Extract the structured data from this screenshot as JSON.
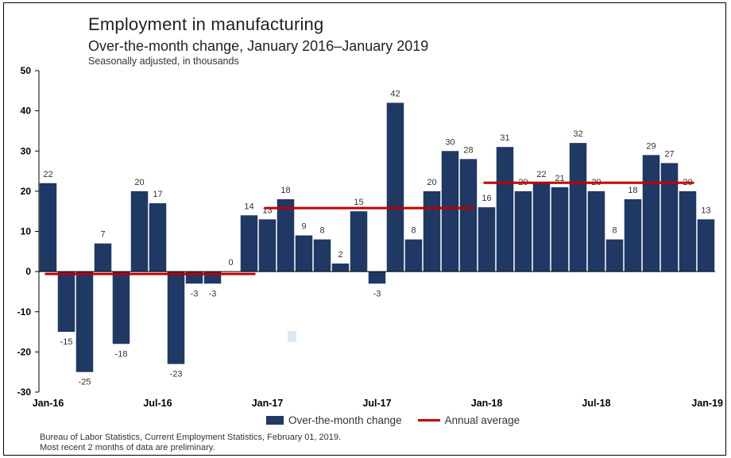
{
  "title": "Employment in manufacturing",
  "subtitle": "Over-the-month change, January 2016–January 2019",
  "note": "Seasonally adjusted, in thousands",
  "legend": {
    "bar_label": "Over-the-month change",
    "line_label": "Annual average"
  },
  "source": {
    "line1": "Bureau of Labor Statistics, Current Employment Statistics, February 01, 2019.",
    "line2": "Most recent 2 months of data are preliminary."
  },
  "colors": {
    "bar": "#1f3864",
    "avg_line": "#c00000"
  },
  "chart_data": {
    "type": "bar",
    "title": "Employment in manufacturing",
    "subtitle": "Over-the-month change, January 2016–January 2019",
    "ylabel": "",
    "xlabel": "",
    "ylim": [
      -30,
      50
    ],
    "yticks": [
      -30,
      -20,
      -10,
      0,
      10,
      20,
      30,
      40,
      50
    ],
    "grid": false,
    "legend_position": "bottom",
    "x_tick_labels": [
      {
        "label": "Jan-16",
        "month": "Jan 2016"
      },
      {
        "label": "Jul-16",
        "month": "Jul 2016"
      },
      {
        "label": "Jan-17",
        "month": "Jan 2017"
      },
      {
        "label": "Jul-17",
        "month": "Jul 2017"
      },
      {
        "label": "Jan-18",
        "month": "Jan 2018"
      },
      {
        "label": "Jul-18",
        "month": "Jul 2018"
      },
      {
        "label": "Jan-19",
        "month": "Jan 2019"
      }
    ],
    "categories": [
      "Jan 2016",
      "Feb 2016",
      "Mar 2016",
      "Apr 2016",
      "May 2016",
      "Jun 2016",
      "Jul 2016",
      "Aug 2016",
      "Sep 2016",
      "Oct 2016",
      "Nov 2016",
      "Dec 2016",
      "Jan 2017",
      "Feb 2017",
      "Mar 2017",
      "Apr 2017",
      "May 2017",
      "Jun 2017",
      "Jul 2017",
      "Aug 2017",
      "Sep 2017",
      "Oct 2017",
      "Nov 2017",
      "Dec 2017",
      "Jan 2018",
      "Feb 2018",
      "Mar 2018",
      "Apr 2018",
      "May 2018",
      "Jun 2018",
      "Jul 2018",
      "Aug 2018",
      "Sep 2018",
      "Oct 2018",
      "Nov 2018",
      "Dec 2018",
      "Jan 2019"
    ],
    "series": [
      {
        "name": "Over-the-month change",
        "type": "bar",
        "values": [
          22,
          -15,
          -25,
          7,
          -18,
          20,
          17,
          -23,
          -3,
          -3,
          0,
          14,
          13,
          18,
          9,
          8,
          2,
          15,
          -3,
          42,
          8,
          20,
          30,
          28,
          16,
          31,
          20,
          22,
          21,
          32,
          20,
          8,
          18,
          29,
          27,
          20,
          13
        ]
      },
      {
        "name": "Annual average",
        "type": "line",
        "segments": [
          {
            "from": "Jan 2016",
            "to": "Dec 2016",
            "value": -0.6
          },
          {
            "from": "Jan 2017",
            "to": "Dec 2017",
            "value": 15.8
          },
          {
            "from": "Jan 2018",
            "to": "Dec 2018",
            "value": 22.1
          }
        ]
      }
    ]
  }
}
